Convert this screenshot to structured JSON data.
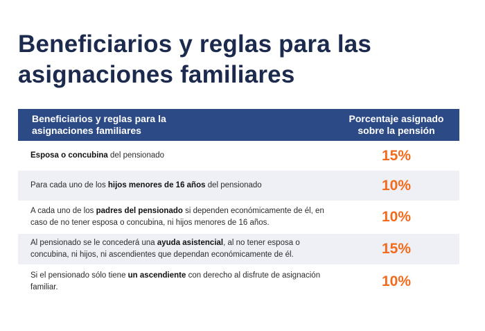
{
  "title": {
    "line1": "Beneficiarios y reglas para las",
    "line2": "asignaciones familiares"
  },
  "table": {
    "header": {
      "col1_line1": "Beneficiarios y reglas para la",
      "col1_line2": "asignaciones familiares",
      "col2_line1": "Porcentaje asignado",
      "col2_line2": "sobre la pensión"
    },
    "rows": [
      {
        "pre": "",
        "bold": "Esposa o concubina",
        "post": " del pensionado",
        "percent": "15%"
      },
      {
        "pre": "Para cada uno de los ",
        "bold": "hijos menores de 16 años",
        "post": " del pensionado",
        "percent": "10%"
      },
      {
        "pre": "A cada uno de los ",
        "bold": "padres del pensionado",
        "post": " si dependen económicamente de él, en caso de no tener esposa o concubina, ni hijos menores de 16 años.",
        "percent": "10%"
      },
      {
        "pre": "Al pensionado se le concederá una ",
        "bold": "ayuda asistencial",
        "post": ", al no tener esposa o concubina, ni hijos, ni ascendientes que dependan económicamente de él.",
        "percent": "15%"
      },
      {
        "pre": "Si el pensionado sólo tiene ",
        "bold": "un ascendiente",
        "post": " con derecho al disfrute de asignación familiar.",
        "percent": "10%"
      }
    ]
  },
  "colors": {
    "header_bg": "#2c4a86",
    "title": "#1b2a4d",
    "percent": "#f26b1d",
    "row_alt_bg": "#eef0f5"
  }
}
